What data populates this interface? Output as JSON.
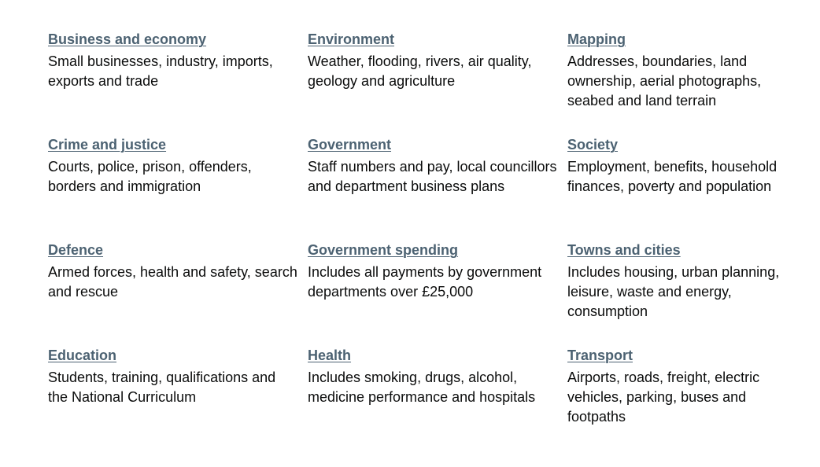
{
  "topics": [
    {
      "title": "Business and economy",
      "description": "Small businesses, industry, imports, exports and trade"
    },
    {
      "title": "Environment",
      "description": "Weather, flooding, rivers, air quality, geology and agriculture"
    },
    {
      "title": "Mapping",
      "description": "Addresses, boundaries, land ownership, aerial photographs, seabed and land terrain"
    },
    {
      "title": "Crime and justice",
      "description": "Courts, police, prison, offenders, borders and immigration"
    },
    {
      "title": "Government",
      "description": "Staff numbers and pay, local councillors and department business plans"
    },
    {
      "title": "Society",
      "description": "Employment, benefits, household finances, poverty and population"
    },
    {
      "title": "Defence",
      "description": "Armed forces, health and safety, search and rescue"
    },
    {
      "title": "Government spending",
      "description": "Includes all payments by government departments over £25,000"
    },
    {
      "title": "Towns and cities",
      "description": "Includes housing, urban planning, leisure, waste and energy, consumption"
    },
    {
      "title": "Education",
      "description": "Students, training, qualifications and the National Curriculum"
    },
    {
      "title": "Health",
      "description": "Includes smoking, drugs, alcohol, medicine performance and hospitals"
    },
    {
      "title": "Transport",
      "description": "Airports, roads, freight, electric vehicles, parking, buses and footpaths"
    }
  ],
  "colors": {
    "link": "#4c6272",
    "text": "#0b0c0c",
    "background": "#ffffff"
  }
}
